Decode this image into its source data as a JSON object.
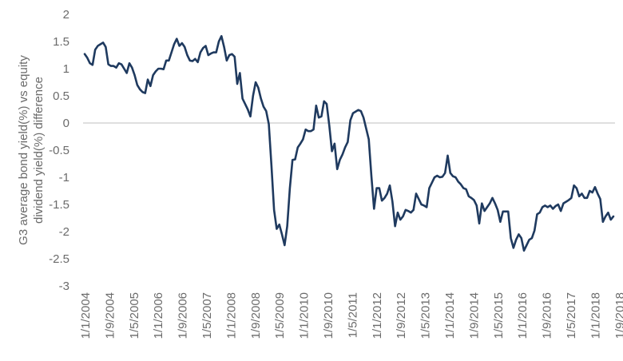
{
  "chart_data": {
    "type": "line",
    "title": "",
    "xlabel": "",
    "ylabel": "G3 average bond yield(%) vs equity dividend yield(%) difference",
    "ylabel_lines": [
      "G3 average bond yield(%) vs equity",
      "dividend yield(%) difference"
    ],
    "ylim": [
      -3,
      2
    ],
    "yticks": [
      "2",
      "1.5",
      "1",
      "0.5",
      "0",
      "-0.5",
      "-1",
      "-1.5",
      "-2",
      "-2.5",
      "-3"
    ],
    "xticks": [
      "1/1/2004",
      "1/9/2004",
      "1/5/2005",
      "1/1/2006",
      "1/9/2006",
      "1/5/2007",
      "1/1/2008",
      "1/9/2008",
      "1/5/2009",
      "1/1/2010",
      "1/9/2010",
      "1/5/2011",
      "1/1/2012",
      "1/9/2012",
      "1/5/2013",
      "1/1/2014",
      "1/9/2014",
      "1/5/2015",
      "1/1/2016",
      "1/9/2016",
      "1/5/2017",
      "1/1/2018",
      "1/9/2018"
    ],
    "grid": false,
    "legend": "none",
    "line_color": "#1f3a5f",
    "series": [
      {
        "values": [
          1.27,
          1.2,
          1.1,
          1.07,
          1.35,
          1.42,
          1.45,
          1.48,
          1.4,
          1.08,
          1.05,
          1.05,
          1.02,
          1.1,
          1.08,
          1.0,
          0.92,
          1.1,
          1.02,
          0.88,
          0.7,
          0.62,
          0.57,
          0.55,
          0.8,
          0.68,
          0.88,
          0.95,
          1.0,
          1.0,
          0.99,
          1.15,
          1.15,
          1.3,
          1.45,
          1.55,
          1.42,
          1.47,
          1.4,
          1.25,
          1.15,
          1.14,
          1.18,
          1.12,
          1.3,
          1.38,
          1.42,
          1.25,
          1.28,
          1.3,
          1.3,
          1.5,
          1.6,
          1.4,
          1.15,
          1.25,
          1.27,
          1.22,
          0.72,
          0.92,
          0.45,
          0.35,
          0.25,
          0.12,
          0.5,
          0.75,
          0.65,
          0.45,
          0.3,
          0.22,
          -0.02,
          -0.78,
          -1.6,
          -1.95,
          -1.87,
          -2.05,
          -2.25,
          -1.9,
          -1.2,
          -0.68,
          -0.67,
          -0.45,
          -0.38,
          -0.3,
          -0.12,
          -0.15,
          -0.15,
          -0.12,
          0.32,
          0.1,
          0.12,
          0.4,
          0.35,
          -0.05,
          -0.52,
          -0.38,
          -0.85,
          -0.68,
          -0.58,
          -0.45,
          -0.35,
          0.05,
          0.18,
          0.21,
          0.24,
          0.22,
          0.1,
          -0.1,
          -0.3,
          -0.98,
          -1.58,
          -1.2,
          -1.2,
          -1.43,
          -1.38,
          -1.3,
          -1.15,
          -1.45,
          -1.9,
          -1.65,
          -1.78,
          -1.72,
          -1.6,
          -1.62,
          -1.65,
          -1.6,
          -1.3,
          -1.4,
          -1.5,
          -1.52,
          -1.55,
          -1.2,
          -1.1,
          -1.0,
          -0.97,
          -1.0,
          -0.99,
          -0.92,
          -0.6,
          -0.92,
          -0.98,
          -1.0,
          -1.08,
          -1.13,
          -1.2,
          -1.22,
          -1.35,
          -1.38,
          -1.42,
          -1.52,
          -1.85,
          -1.48,
          -1.62,
          -1.55,
          -1.48,
          -1.38,
          -1.48,
          -1.6,
          -1.82,
          -1.63,
          -1.63,
          -1.63,
          -2.12,
          -2.3,
          -2.15,
          -2.05,
          -2.12,
          -2.35,
          -2.25,
          -2.15,
          -2.12,
          -1.98,
          -1.68,
          -1.65,
          -1.55,
          -1.52,
          -1.55,
          -1.52,
          -1.58,
          -1.53,
          -1.5,
          -1.62,
          -1.48,
          -1.45,
          -1.42,
          -1.38,
          -1.15,
          -1.2,
          -1.35,
          -1.3,
          -1.38,
          -1.38,
          -1.25,
          -1.28,
          -1.18,
          -1.3,
          -1.4,
          -1.82,
          -1.72,
          -1.65,
          -1.78,
          -1.72
        ]
      }
    ]
  }
}
